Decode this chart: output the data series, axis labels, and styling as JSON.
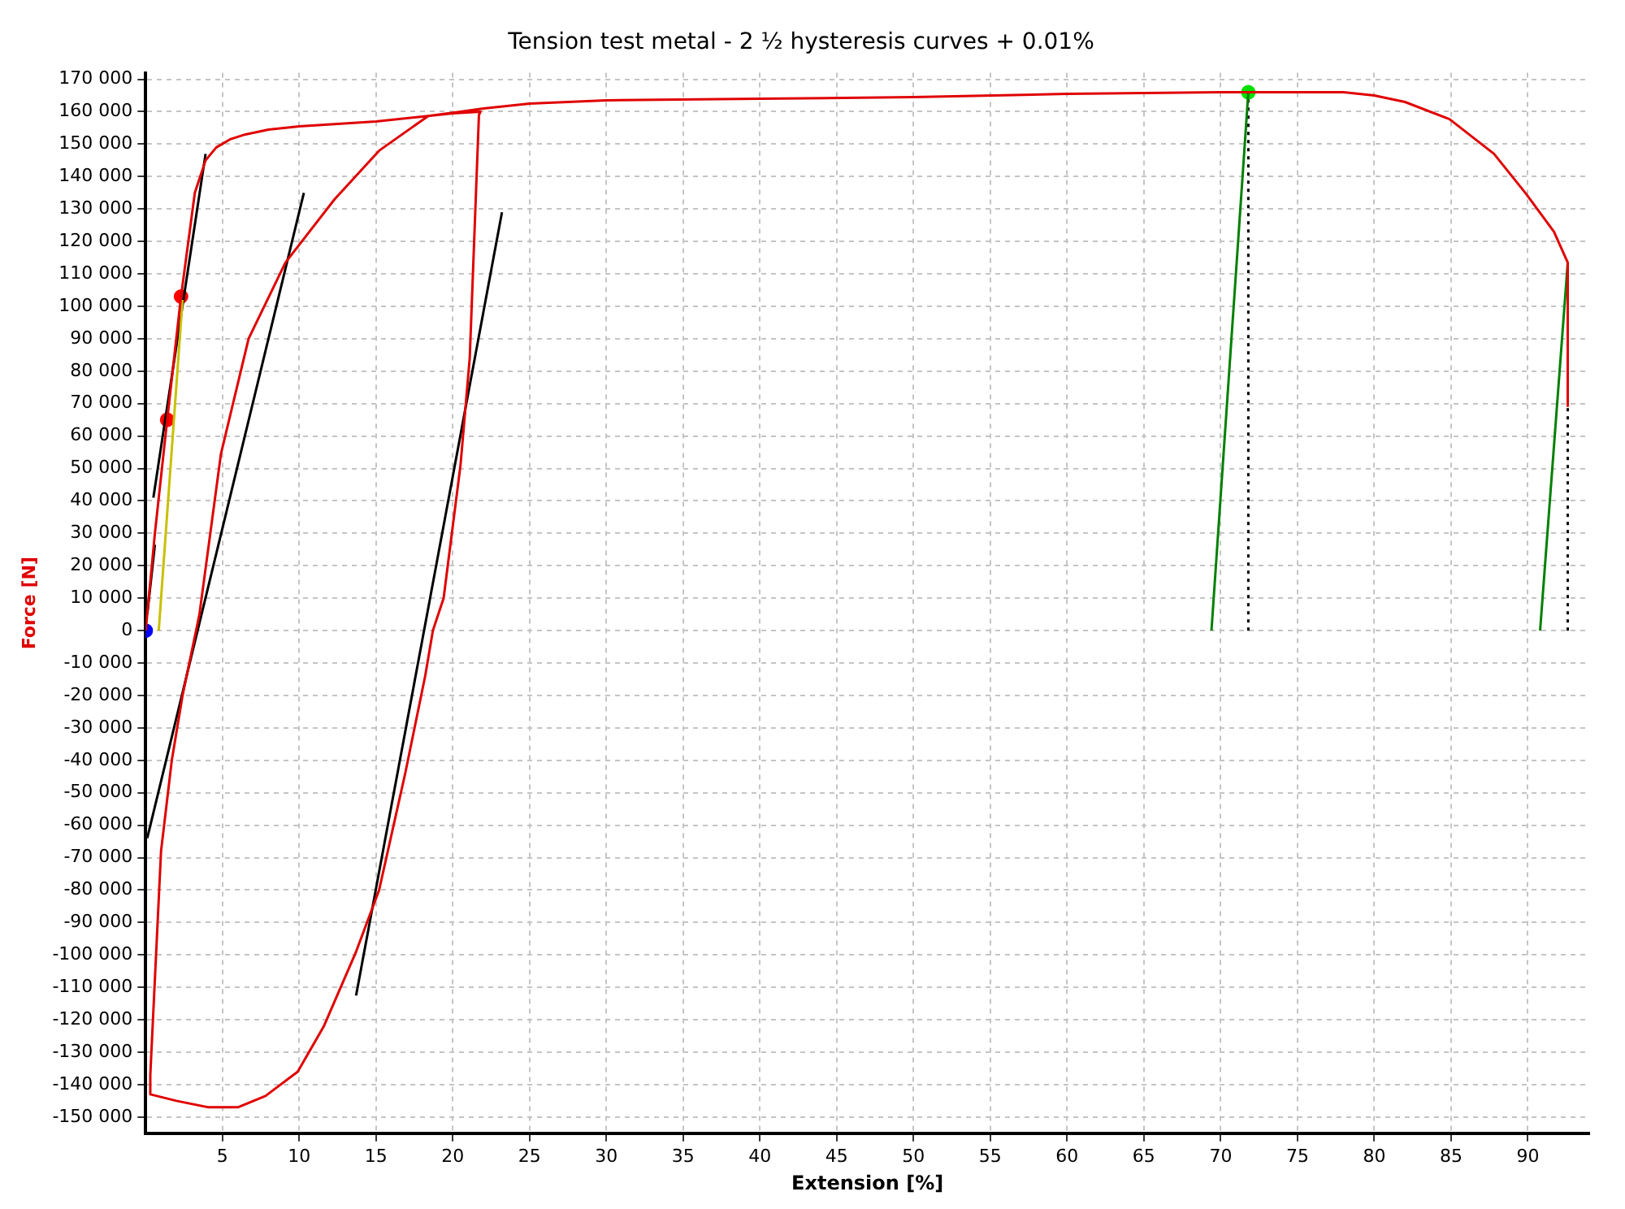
{
  "chart_data": {
    "type": "line",
    "title": "Tension test metal - 2 ½ hysteresis curves + 0.01%",
    "xlabel": "Extension [%]",
    "ylabel": "Force [N]",
    "xlim": [
      0,
      94
    ],
    "ylim": [
      -155000,
      172000
    ],
    "xticks": [
      5,
      10,
      15,
      20,
      25,
      30,
      35,
      40,
      45,
      50,
      55,
      60,
      65,
      70,
      75,
      80,
      85,
      90
    ],
    "yticks": [
      {
        "value": -150000,
        "label": "-150 000"
      },
      {
        "value": -140000,
        "label": "-140 000"
      },
      {
        "value": -130000,
        "label": "-130 000"
      },
      {
        "value": -120000,
        "label": "-120 000"
      },
      {
        "value": -110000,
        "label": "-110 000"
      },
      {
        "value": -100000,
        "label": "-100 000"
      },
      {
        "value": -90000,
        "label": "-90 000"
      },
      {
        "value": -80000,
        "label": "-80 000"
      },
      {
        "value": -70000,
        "label": "-70 000"
      },
      {
        "value": -60000,
        "label": "-60 000"
      },
      {
        "value": -50000,
        "label": "-50 000"
      },
      {
        "value": -40000,
        "label": "-40 000"
      },
      {
        "value": -30000,
        "label": "-30 000"
      },
      {
        "value": -20000,
        "label": "-20 000"
      },
      {
        "value": -10000,
        "label": "-10 000"
      },
      0,
      {
        "value": 10000,
        "label": "10 000"
      },
      {
        "value": 20000,
        "label": "20 000"
      },
      {
        "value": 30000,
        "label": "30 000"
      },
      {
        "value": 40000,
        "label": "40 000"
      },
      {
        "value": 50000,
        "label": "50 000"
      },
      {
        "value": 60000,
        "label": "60 000"
      },
      {
        "value": 70000,
        "label": "70 000"
      },
      {
        "value": 80000,
        "label": "80 000"
      },
      {
        "value": 90000,
        "label": "90 000"
      },
      {
        "value": 100000,
        "label": "100 000"
      },
      {
        "value": 110000,
        "label": "110 000"
      },
      {
        "value": 120000,
        "label": "120 000"
      },
      {
        "value": 130000,
        "label": "130 000"
      },
      {
        "value": 140000,
        "label": "140 000"
      },
      {
        "value": 150000,
        "label": "150 000"
      },
      {
        "value": 160000,
        "label": "160 000"
      },
      {
        "value": 170000,
        "label": "170 000"
      }
    ],
    "grid": true,
    "marker": "none",
    "line_style": "solid",
    "series": [
      {
        "color": "#e00000",
        "x": [
          0,
          0.6,
          1.4,
          2.3,
          3.2,
          3.9,
          4.6,
          5.5,
          6.5,
          8,
          10,
          15,
          20,
          21.8,
          21.7,
          21.1,
          20.5,
          19.4,
          18.7,
          18.2,
          16.9,
          15.2,
          13.7,
          11.6,
          9.9,
          7.8,
          6.0,
          4.1,
          2.0,
          0.3,
          0.3,
          1.0,
          1.7,
          2.4,
          3.5,
          4.9,
          6.7,
          9.1,
          12.3,
          15.2,
          18.4,
          20.5,
          22,
          25,
          30,
          40,
          50,
          60,
          70,
          78,
          80,
          82,
          84.9,
          87.8,
          89.9,
          91.7,
          92.6,
          92.6
        ],
        "values": [
          0,
          30000,
          65000,
          103000,
          135000,
          145000,
          149000,
          151500,
          153000,
          154500,
          155500,
          157000,
          159500,
          160000,
          159000,
          84000,
          51000,
          10000,
          0,
          -14000,
          -44000,
          -80000,
          -99000,
          -122000,
          -136000,
          -143500,
          -147000,
          -147000,
          -145000,
          -143000,
          -137000,
          -68000,
          -40000,
          -20000,
          5000,
          54500,
          90000,
          113500,
          133000,
          148000,
          158700,
          160000,
          161000,
          162500,
          163500,
          164000,
          164500,
          165500,
          166000,
          166000,
          165000,
          163000,
          157700,
          147000,
          134600,
          123000,
          113500,
          69300
        ]
      },
      {
        "color": "#c8c000",
        "x": [
          0.85,
          2.4
        ],
        "values": [
          0,
          102000
        ]
      },
      {
        "type": "line",
        "color": "#000000",
        "x": [
          0.1,
          0.6
        ],
        "values": [
          5000,
          26500
        ]
      },
      {
        "type": "line",
        "color": "#000000",
        "x": [
          0.5,
          3.9
        ],
        "values": [
          41000,
          147000
        ]
      },
      {
        "type": "line",
        "color": "#000000",
        "x": [
          0.1,
          10.3
        ],
        "values": [
          -64000,
          135000
        ]
      },
      {
        "type": "line",
        "color": "#000000",
        "x": [
          13.7,
          23.2
        ],
        "values": [
          -112500,
          129000
        ]
      },
      {
        "type": "line",
        "color": "#008000",
        "x": [
          69.4,
          71.8
        ],
        "values": [
          0,
          166000
        ]
      },
      {
        "type": "line",
        "color": "#008000",
        "x": [
          90.8,
          92.6
        ],
        "values": [
          0,
          113500
        ]
      },
      {
        "type": "line",
        "color": "#000000",
        "line_style": "dotted",
        "x": [
          71.8,
          71.8
        ],
        "values": [
          0,
          166000
        ]
      },
      {
        "type": "line",
        "color": "#000000",
        "line_style": "dotted",
        "x": [
          92.6,
          92.6
        ],
        "values": [
          0,
          69300
        ]
      },
      {
        "type": "scatter",
        "color": "#0000ff",
        "marker": "circle",
        "x": [
          0
        ],
        "values": [
          0
        ]
      },
      {
        "type": "scatter",
        "color": "#ff0000",
        "marker": "circle",
        "x": [
          1.4,
          2.3
        ],
        "values": [
          65000,
          103000
        ]
      },
      {
        "type": "scatter",
        "color": "#00e000",
        "marker": "circle",
        "x": [
          71.8
        ],
        "values": [
          166000
        ]
      }
    ]
  }
}
